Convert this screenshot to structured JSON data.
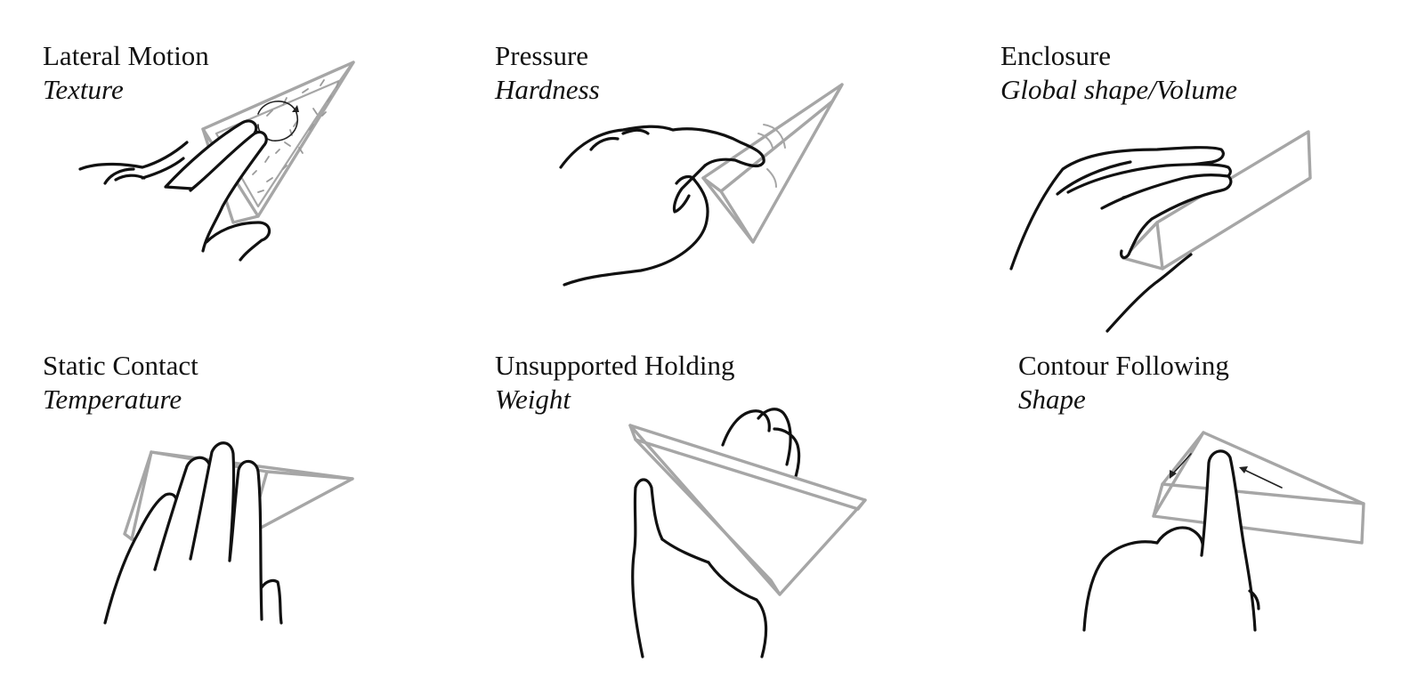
{
  "figure": {
    "panels": [
      {
        "procedure": "Lateral Motion",
        "property": "Texture"
      },
      {
        "procedure": "Pressure",
        "property": "Hardness"
      },
      {
        "procedure": "Enclosure",
        "property": "Global shape/Volume"
      },
      {
        "procedure": "Static Contact",
        "property": "Temperature"
      },
      {
        "procedure": "Unsupported Holding",
        "property": "Weight"
      },
      {
        "procedure": "Contour Following",
        "property": "Shape"
      }
    ]
  },
  "colors": {
    "hand_outline": "#111111",
    "object_outline": "#a6a6a6",
    "background": "#ffffff"
  }
}
